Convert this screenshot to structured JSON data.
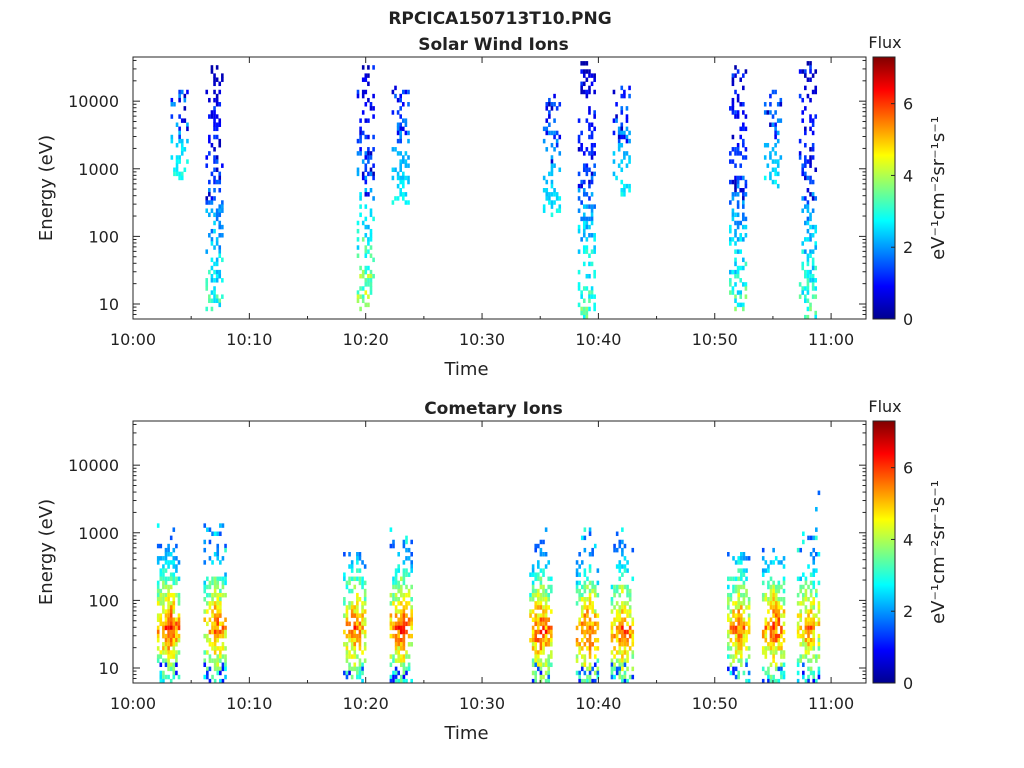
{
  "figure_title": "RPCICA150713T10.PNG",
  "colormap": [
    "#00008f",
    "#0000ff",
    "#0080ff",
    "#00ffff",
    "#80ff80",
    "#ffff00",
    "#ff8000",
    "#ff0000",
    "#800000"
  ],
  "chart_data": [
    {
      "type": "heatmap",
      "title": "Solar Wind Ions",
      "xlabel": "Time",
      "ylabel": "Energy (eV)",
      "x_ticks": [
        "10:00",
        "10:10",
        "10:20",
        "10:30",
        "10:40",
        "10:50",
        "11:00"
      ],
      "y_ticks": [
        "10",
        "100",
        "1000",
        "10000"
      ],
      "yscale": "log",
      "xlim": [
        "10:00",
        "11:03"
      ],
      "ylim": [
        6,
        45000
      ],
      "colorbar": {
        "title": "Flux",
        "label": "eV⁻¹cm⁻²sr⁻¹s⁻¹",
        "ticks": [
          "0",
          "2",
          "4",
          "6"
        ],
        "range": [
          0,
          7.3
        ]
      },
      "bursts": [
        {
          "time": "10:04",
          "e_min": 700,
          "e_max": 15000,
          "flux_low": 1.8,
          "flux_high": 3.2
        },
        {
          "time": "10:07",
          "e_min": 8,
          "e_max": 35000,
          "flux_low": 0.2,
          "flux_high": 3.8
        },
        {
          "time": "10:20",
          "e_min": 8,
          "e_max": 35000,
          "flux_low": 0.2,
          "flux_high": 5.0
        },
        {
          "time": "10:23",
          "e_min": 300,
          "e_max": 17000,
          "flux_low": 1.5,
          "flux_high": 3.0
        },
        {
          "time": "10:36",
          "e_min": 200,
          "e_max": 12000,
          "flux_low": 1.5,
          "flux_high": 3.0
        },
        {
          "time": "10:39",
          "e_min": 6,
          "e_max": 38000,
          "flux_low": 0.2,
          "flux_high": 4.2
        },
        {
          "time": "10:42",
          "e_min": 400,
          "e_max": 18000,
          "flux_low": 1.5,
          "flux_high": 3.0
        },
        {
          "time": "10:52",
          "e_min": 8,
          "e_max": 35000,
          "flux_low": 0.2,
          "flux_high": 4.0
        },
        {
          "time": "10:55",
          "e_min": 500,
          "e_max": 15000,
          "flux_low": 1.5,
          "flux_high": 3.0
        },
        {
          "time": "10:58",
          "e_min": 6,
          "e_max": 38000,
          "flux_low": 0.2,
          "flux_high": 4.0
        }
      ]
    },
    {
      "type": "heatmap",
      "title": "Cometary Ions",
      "xlabel": "Time",
      "ylabel": "Energy (eV)",
      "x_ticks": [
        "10:00",
        "10:10",
        "10:20",
        "10:30",
        "10:40",
        "10:50",
        "11:00"
      ],
      "y_ticks": [
        "10",
        "100",
        "1000",
        "10000"
      ],
      "yscale": "log",
      "xlim": [
        "10:00",
        "11:03"
      ],
      "ylim": [
        6,
        45000
      ],
      "colorbar": {
        "title": "Flux",
        "label": "eV⁻¹cm⁻²sr⁻¹s⁻¹",
        "ticks": [
          "0",
          "2",
          "4",
          "6"
        ],
        "range": [
          0,
          7.3
        ]
      },
      "bursts": [
        {
          "time": "10:03",
          "e_min": 6,
          "e_max": 1300,
          "flux_peak": 6.8,
          "peak_energy": 40
        },
        {
          "time": "10:07",
          "e_min": 6,
          "e_max": 1300,
          "flux_peak": 6.5,
          "peak_energy": 40
        },
        {
          "time": "10:19",
          "e_min": 6,
          "e_max": 500,
          "flux_peak": 6.5,
          "peak_energy": 40
        },
        {
          "time": "10:23",
          "e_min": 6,
          "e_max": 1200,
          "flux_peak": 6.8,
          "peak_energy": 40
        },
        {
          "time": "10:35",
          "e_min": 6,
          "e_max": 1200,
          "flux_peak": 6.8,
          "peak_energy": 35
        },
        {
          "time": "10:39",
          "e_min": 6,
          "e_max": 1500,
          "flux_peak": 6.8,
          "peak_energy": 35
        },
        {
          "time": "10:42",
          "e_min": 6,
          "e_max": 1800,
          "flux_peak": 6.8,
          "peak_energy": 35
        },
        {
          "time": "10:52",
          "e_min": 6,
          "e_max": 500,
          "flux_peak": 6.5,
          "peak_energy": 40
        },
        {
          "time": "10:55",
          "e_min": 6,
          "e_max": 600,
          "flux_peak": 6.8,
          "peak_energy": 40
        },
        {
          "time": "10:58",
          "e_min": 6,
          "e_max": 5000,
          "flux_peak": 6.3,
          "peak_energy": 40
        }
      ]
    }
  ]
}
